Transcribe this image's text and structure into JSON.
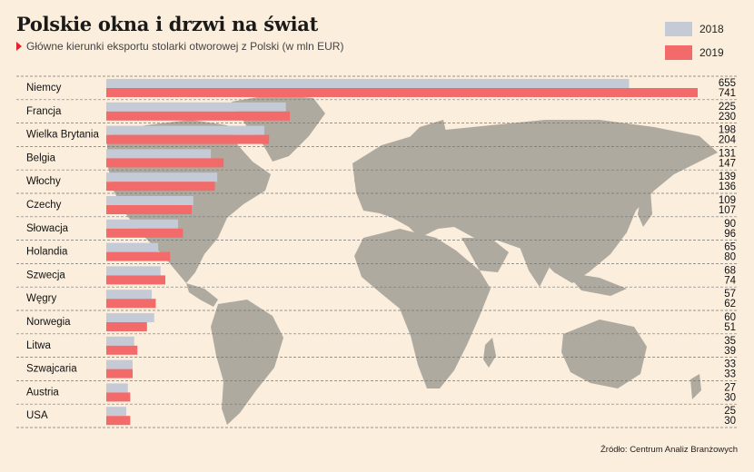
{
  "title": "Polskie okna i drzwi na świat",
  "subtitle": "Główne kierunki eksportu stolarki otworowej z Polski (w mln EUR)",
  "source": "Źródło: Centrum Analiz Branżowych",
  "colors": {
    "background": "#fbeedd",
    "map": "#aeaaa0",
    "series_2018": "#c5cad7",
    "series_2019": "#f26a6a",
    "accent": "#e0242c"
  },
  "chart_data": {
    "type": "bar",
    "orientation": "horizontal",
    "title": "Polskie okna i drzwi na świat",
    "subtitle": "Główne kierunki eksportu stolarki otworowej z Polski (w mln EUR)",
    "categories": [
      "Niemcy",
      "Francja",
      "Wielka Brytania",
      "Belgia",
      "Włochy",
      "Czechy",
      "Słowacja",
      "Holandia",
      "Szwecja",
      "Węgry",
      "Norwegia",
      "Litwa",
      "Szwajcaria",
      "Austria",
      "USA"
    ],
    "series": [
      {
        "name": "2018",
        "values": [
          655,
          225,
          198,
          131,
          139,
          109,
          90,
          65,
          68,
          57,
          60,
          35,
          33,
          27,
          25
        ]
      },
      {
        "name": "2019",
        "values": [
          741,
          230,
          204,
          147,
          136,
          107,
          96,
          80,
          74,
          62,
          51,
          39,
          33,
          30,
          30
        ]
      }
    ],
    "xlim": [
      0,
      741
    ],
    "legend_position": "top-right",
    "grid": false
  }
}
